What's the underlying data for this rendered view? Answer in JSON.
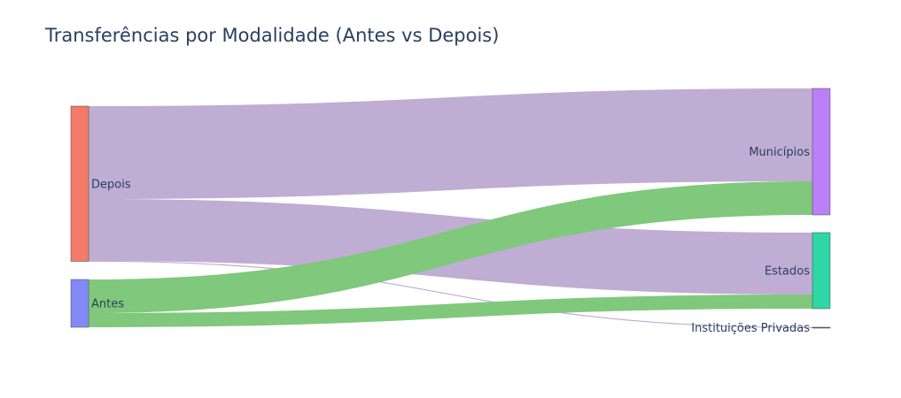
{
  "chart_data": {
    "type": "sankey",
    "title": "Transferências por Modalidade (Antes vs Depois)",
    "nodes": [
      {
        "id": "depois",
        "label": "Depois",
        "color": "#f47b67"
      },
      {
        "id": "antes",
        "label": "Antes",
        "color": "#8489f8"
      },
      {
        "id": "municipios",
        "label": "Municípios",
        "color": "#bc7ff7"
      },
      {
        "id": "estados",
        "label": "Estados",
        "color": "#2fd6a6"
      },
      {
        "id": "instituicoes",
        "label": "Instituições Privadas",
        "color": "#60626b"
      }
    ],
    "links": [
      {
        "source": "depois",
        "target": "municipios",
        "value": 105,
        "color": "#bfadd3"
      },
      {
        "source": "depois",
        "target": "estados",
        "value": 70,
        "color": "#bfadd3"
      },
      {
        "source": "depois",
        "target": "instituicoes",
        "value": 0.5,
        "color": "#bfadd3"
      },
      {
        "source": "antes",
        "target": "municipios",
        "value": 38,
        "color": "#80c87c"
      },
      {
        "source": "antes",
        "target": "estados",
        "value": 16,
        "color": "#80c87c"
      }
    ]
  }
}
